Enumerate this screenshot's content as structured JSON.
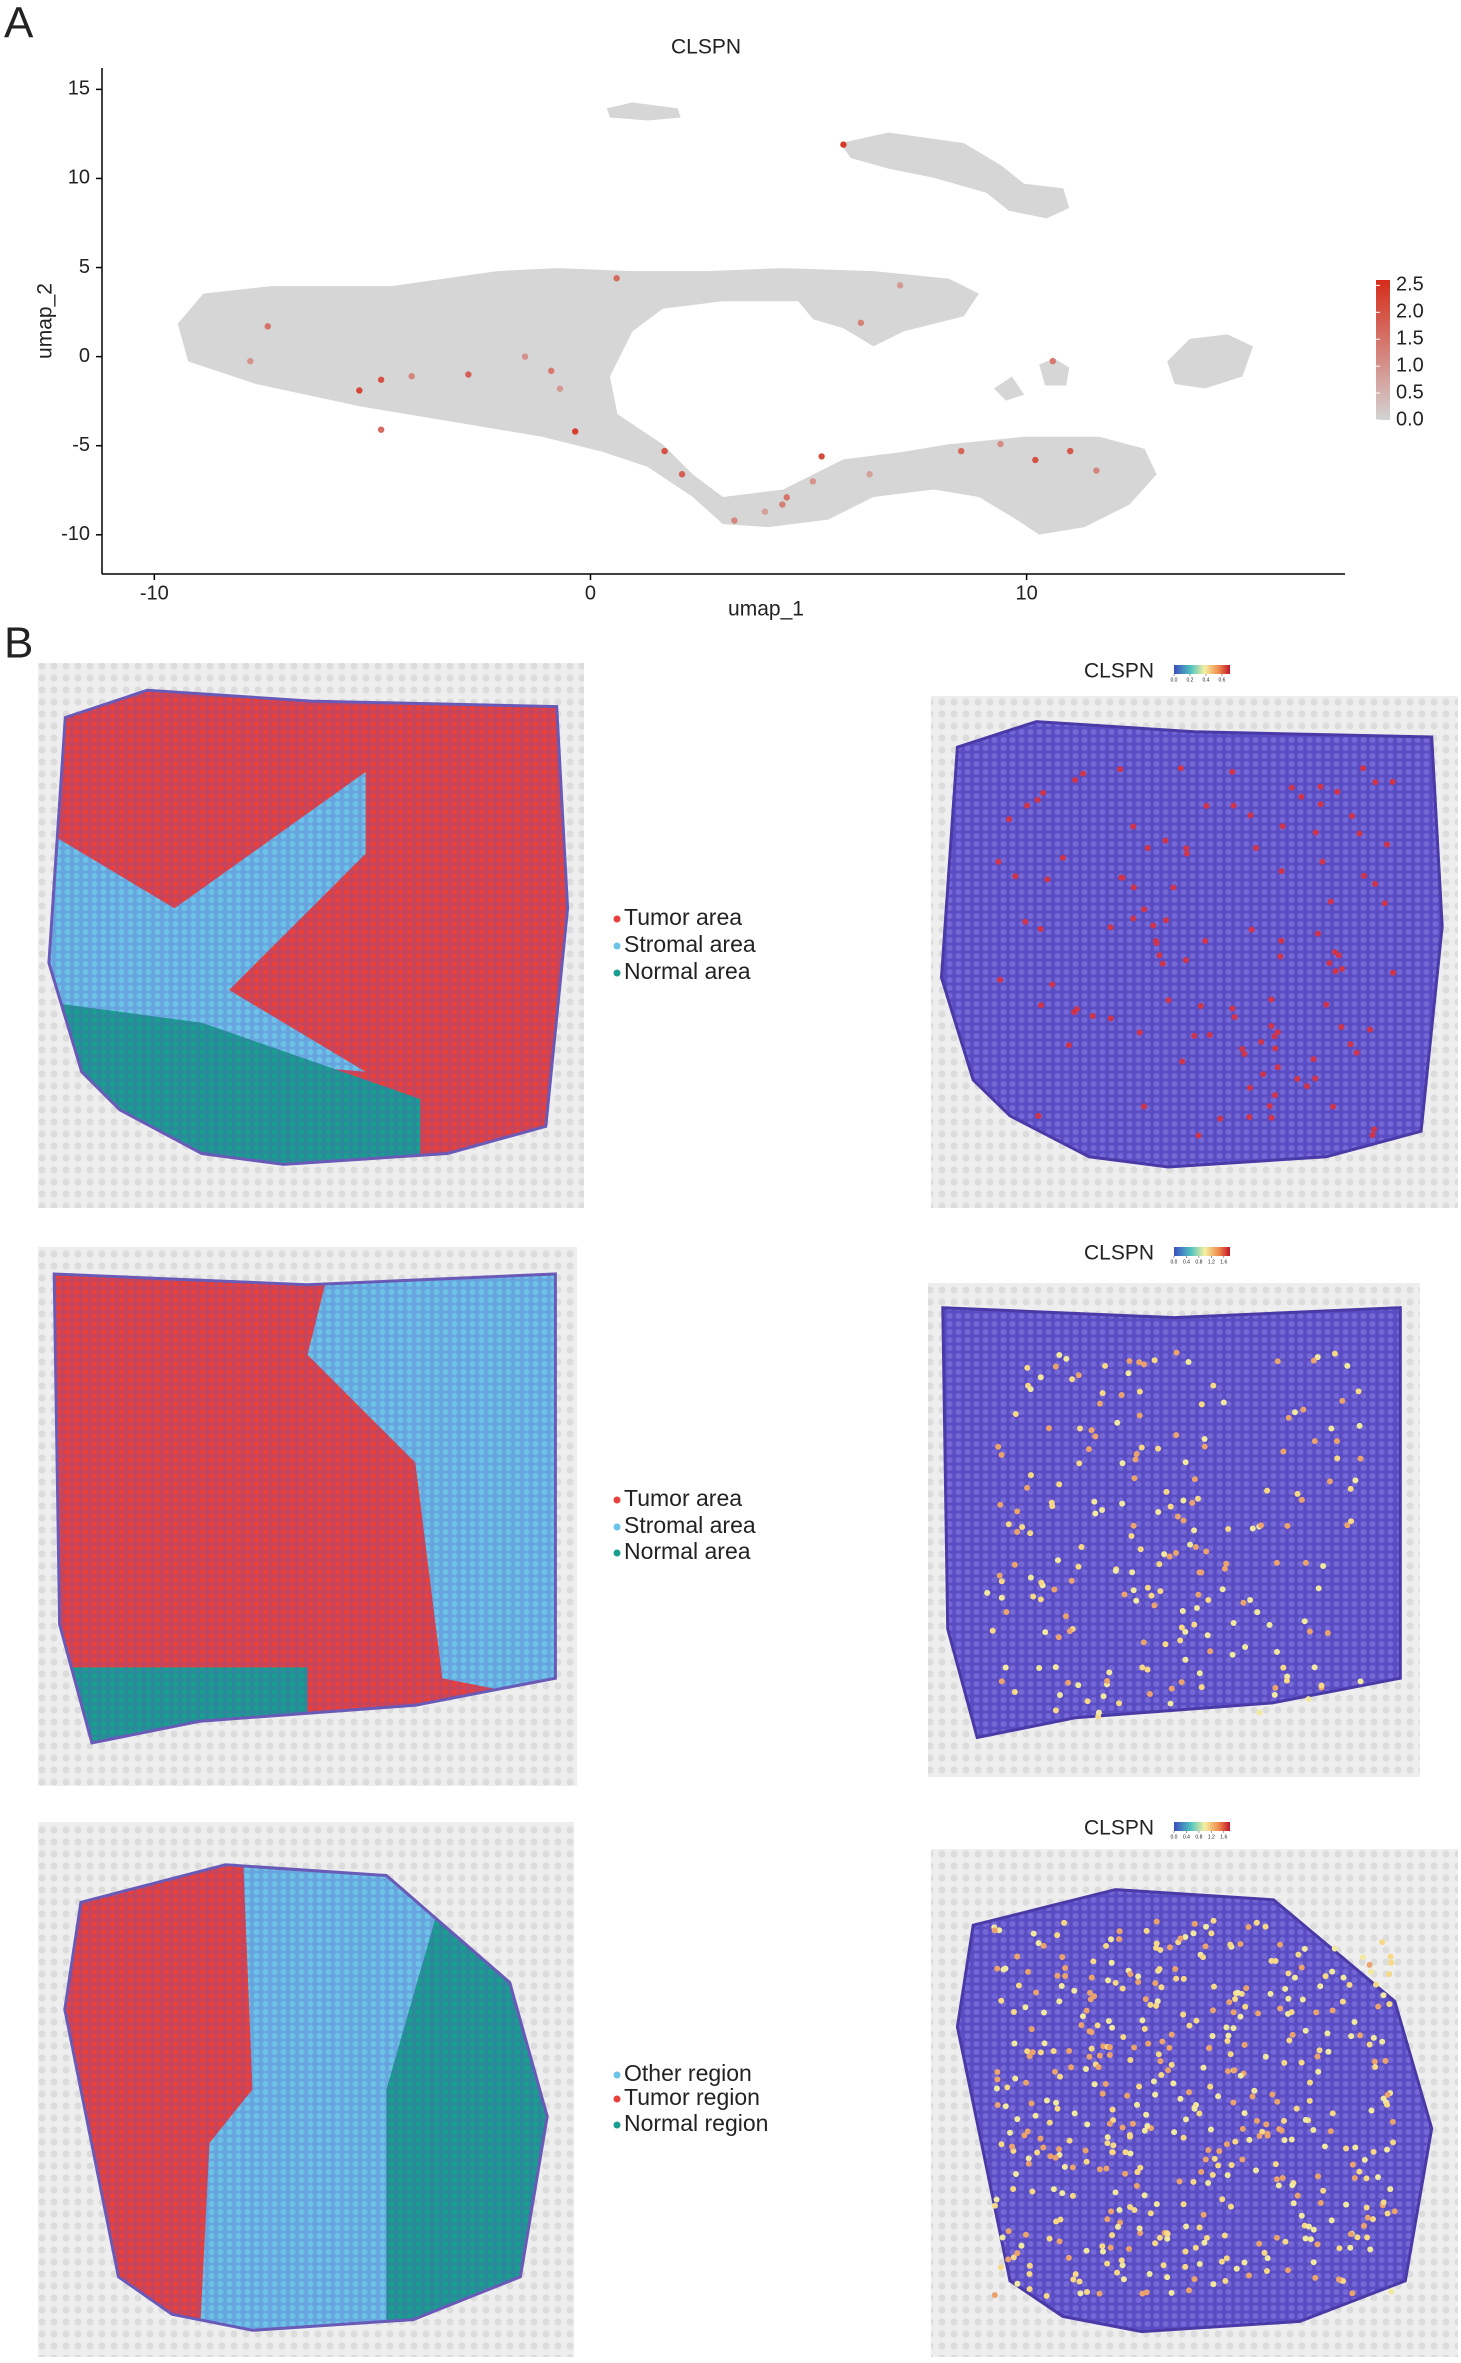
{
  "figure": {
    "panel_labels": [
      "A",
      "B"
    ]
  },
  "chart_data": [
    {
      "type": "scatter",
      "title": "CLSPN",
      "x_label": "umap_1",
      "y_label": "umap_2",
      "xlim": [
        -11.2,
        17.3
      ],
      "ylim": [
        -12.2,
        16.2
      ],
      "xticks": [
        -10,
        0,
        10
      ],
      "yticks": [
        -10,
        -5,
        0,
        5,
        10,
        15
      ],
      "x": [
        -7.4,
        -7.8,
        -4.8,
        -4.1,
        -2.8,
        -5.3,
        -1.5,
        -0.9,
        -0.7,
        -0.35,
        0.6,
        1.7,
        2.1,
        3.3,
        4.0,
        4.5,
        5.1,
        5.3,
        5.8,
        6.2,
        7.1,
        8.5,
        9.4,
        10.2,
        10.6,
        11.0,
        11.6,
        -4.8,
        6.4,
        4.4
      ],
      "values": [
        1.7,
        -0.25,
        -1.3,
        -1.1,
        -1.0,
        -1.9,
        0,
        -0.8,
        -1.8,
        -4.2,
        4.4,
        -5.3,
        -6.6,
        -9.2,
        -8.7,
        -7.9,
        -7.0,
        -5.6,
        11.9,
        1.9,
        4.0,
        -5.3,
        -4.9,
        -5.8,
        -0.25,
        -5.3,
        -6.4,
        -4.1,
        -6.6,
        -8.3
      ],
      "expression": [
        1.5,
        1.0,
        2.0,
        1.2,
        1.8,
        2.2,
        1.0,
        1.4,
        0.9,
        2.3,
        1.6,
        2.0,
        1.8,
        1.2,
        0.8,
        1.5,
        1.0,
        2.1,
        2.4,
        1.3,
        0.9,
        1.7,
        1.1,
        2.0,
        1.4,
        1.9,
        1.2,
        1.6,
        0.8,
        1.3
      ],
      "color_low": "#d3d3d3",
      "color_high": "#d62c1a",
      "background_color": "#d6d6d6",
      "clim": [
        0,
        2.6
      ],
      "cticks": [
        {
          "value": 0,
          "label": "0.0"
        },
        {
          "value": 0.5,
          "label": "0.5"
        },
        {
          "value": 1,
          "label": "1.0"
        },
        {
          "value": 1.5,
          "label": "1.5"
        },
        {
          "value": 2,
          "label": "2.0"
        },
        {
          "value": 2.5,
          "label": "2.5"
        }
      ]
    }
  ],
  "spatial": [
    {
      "legend": [
        "Tumor area",
        "Stromal area",
        "Normal area"
      ],
      "legend_colors": [
        "#e8413c",
        "#6cc3e8",
        "#1a9e8f"
      ],
      "expression_title": "CLSPN",
      "colorbar_ticks": [
        {
          "value": 0,
          "label": "0.0"
        },
        {
          "value": 0.2,
          "label": "0.2"
        },
        {
          "value": 0.4,
          "label": "0.4"
        },
        {
          "value": 0.6,
          "label": "0.6"
        }
      ],
      "colorbar_lim": [
        0,
        0.7
      ]
    },
    {
      "legend": [
        "Tumor area",
        "Stromal area",
        "Normal area"
      ],
      "legend_colors": [
        "#e8413c",
        "#6cc3e8",
        "#1a9e8f"
      ],
      "expression_title": "CLSPN",
      "colorbar_ticks": [
        {
          "value": 0,
          "label": "0.0"
        },
        {
          "value": 0.4,
          "label": "0.4"
        },
        {
          "value": 0.8,
          "label": "0.8"
        },
        {
          "value": 1.2,
          "label": "1.2"
        },
        {
          "value": 1.6,
          "label": "1.6"
        }
      ],
      "colorbar_lim": [
        0,
        1.8
      ]
    },
    {
      "legend": [
        "Other region",
        "Tumor region",
        "Normal region"
      ],
      "legend_colors": [
        "#6cc3e8",
        "#e8413c",
        "#1a9e8f"
      ],
      "expression_title": "CLSPN",
      "colorbar_ticks": [
        {
          "value": 0,
          "label": "0.0"
        },
        {
          "value": 0.4,
          "label": "0.4"
        },
        {
          "value": 0.8,
          "label": "0.8"
        },
        {
          "value": 1.2,
          "label": "1.2"
        },
        {
          "value": 1.6,
          "label": "1.6"
        }
      ],
      "colorbar_lim": [
        0,
        1.8
      ]
    }
  ]
}
